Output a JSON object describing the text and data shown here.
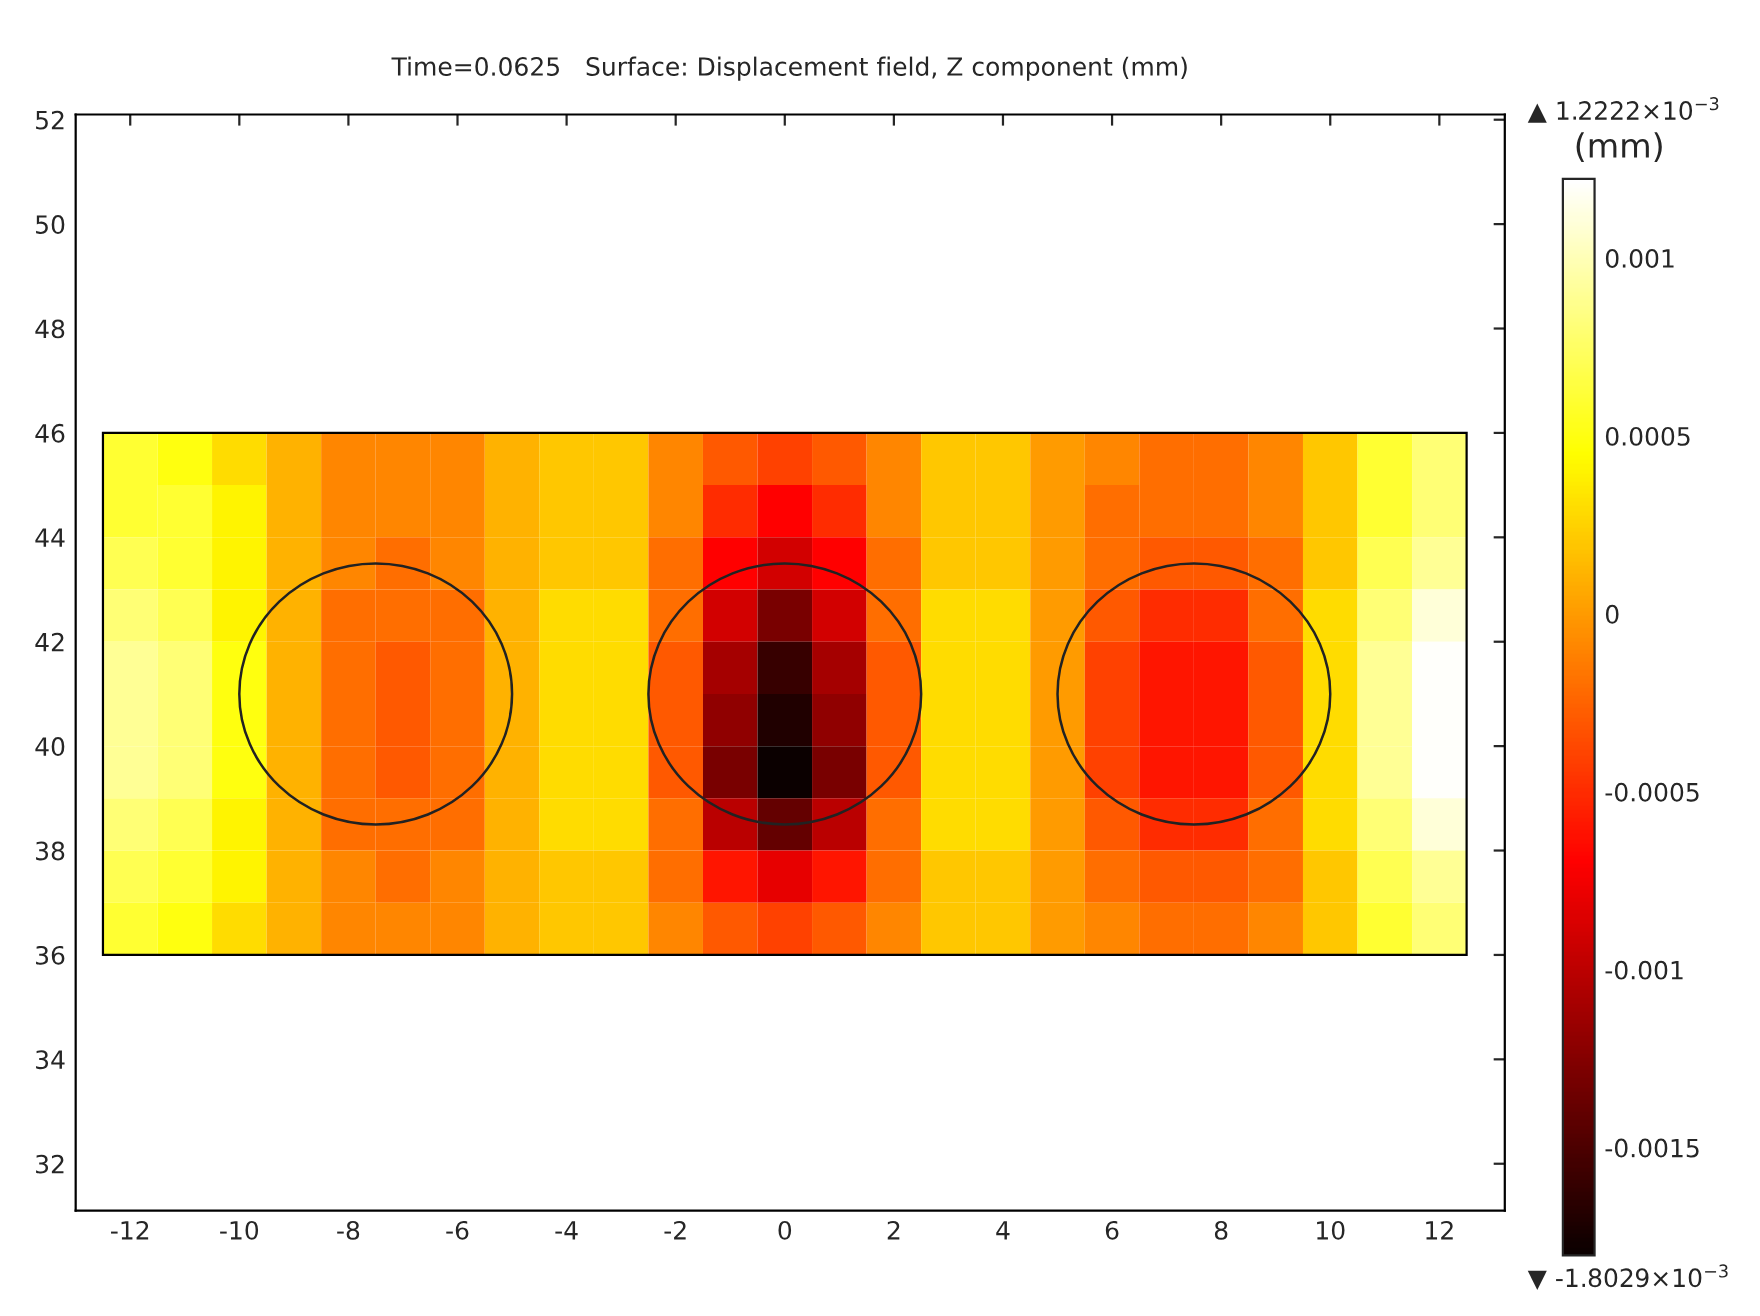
{
  "chart_data": {
    "type": "heatmap",
    "title": "Time=0.0625   Surface: Displacement field, Z component (mm)",
    "clabel": "(mm)",
    "x": [
      -12,
      -11,
      -10,
      -9,
      -8,
      -7,
      -6,
      -5,
      -4,
      -3,
      -2,
      -1,
      0,
      1,
      2,
      3,
      4,
      5,
      6,
      7,
      8,
      9,
      10,
      11,
      12
    ],
    "y": [
      45.5,
      44.5,
      43.5,
      42.5,
      41.5,
      40.5,
      39.5,
      38.5,
      37.5,
      36.5
    ],
    "cells": [
      [
        0.0006,
        0.0005,
        0.0003,
        0.0001,
        -0.0001,
        -0.0001,
        -0.0001,
        0.0001,
        0.0002,
        0.0002,
        -0.0001,
        -0.0003,
        -0.0004,
        -0.0003,
        -0.0001,
        0.0002,
        0.0002,
        0,
        -0.0001,
        -0.0002,
        -0.0002,
        -0.0001,
        0.0002,
        0.0006,
        0.0008
      ],
      [
        0.0006,
        0.0006,
        0.0004,
        0.0001,
        -0.0001,
        -0.0001,
        -0.0001,
        0.0001,
        0.0002,
        0.0002,
        -0.0001,
        -0.0005,
        -0.0007,
        -0.0005,
        -0.0001,
        0.0002,
        0.0002,
        0,
        -0.0002,
        -0.0002,
        -0.0002,
        -0.0001,
        0.0002,
        0.0006,
        0.0008
      ],
      [
        0.0007,
        0.0006,
        0.0004,
        0.0001,
        -0.0001,
        -0.0002,
        -0.0001,
        0.0001,
        0.0002,
        0.0002,
        -0.0002,
        -0.0007,
        -0.0009,
        -0.0007,
        -0.0002,
        0.0002,
        0.0002,
        0,
        -0.0002,
        -0.0003,
        -0.0003,
        -0.0002,
        0.0002,
        0.0007,
        0.0009
      ],
      [
        0.0008,
        0.0007,
        0.0004,
        0.0001,
        -0.0002,
        -0.0002,
        -0.0002,
        0.0001,
        0.0003,
        0.0003,
        -0.0002,
        -0.0009,
        -0.0013,
        -0.0009,
        -0.0002,
        0.0003,
        0.0003,
        0,
        -0.0003,
        -0.0005,
        -0.0005,
        -0.0002,
        0.0003,
        0.0008,
        0.0011
      ],
      [
        0.0009,
        0.0008,
        0.0005,
        0.0001,
        -0.0002,
        -0.0003,
        -0.0002,
        0.0001,
        0.0003,
        0.0003,
        -0.0003,
        -0.0011,
        -0.0016,
        -0.0011,
        -0.0003,
        0.0003,
        0.0003,
        0,
        -0.0004,
        -0.0006,
        -0.0006,
        -0.0003,
        0.0003,
        0.0009,
        0.0012
      ],
      [
        0.0009,
        0.0008,
        0.0005,
        0.0001,
        -0.0002,
        -0.0003,
        -0.0002,
        0.0001,
        0.0003,
        0.0003,
        -0.0003,
        -0.0012,
        -0.0017,
        -0.0012,
        -0.0003,
        0.0003,
        0.0003,
        0,
        -0.0004,
        -0.0006,
        -0.0006,
        -0.0003,
        0.0003,
        0.0009,
        0.0012
      ],
      [
        0.0009,
        0.0008,
        0.0005,
        0.0001,
        -0.0002,
        -0.0003,
        -0.0002,
        0.0001,
        0.0003,
        0.0003,
        -0.0003,
        -0.0013,
        -0.0018,
        -0.0013,
        -0.0003,
        0.0003,
        0.0003,
        0,
        -0.0004,
        -0.0006,
        -0.0006,
        -0.0003,
        0.0003,
        0.0009,
        0.0012
      ],
      [
        0.0008,
        0.0007,
        0.0004,
        0.0001,
        -0.0002,
        -0.0002,
        -0.0002,
        0.0001,
        0.0003,
        0.0003,
        -0.0002,
        -0.001,
        -0.0014,
        -0.001,
        -0.0002,
        0.0003,
        0.0003,
        0,
        -0.0003,
        -0.0005,
        -0.0005,
        -0.0002,
        0.0003,
        0.0008,
        0.0011
      ],
      [
        0.0007,
        0.0006,
        0.0004,
        0.0001,
        -0.0001,
        -0.0002,
        -0.0001,
        0.0001,
        0.0002,
        0.0002,
        -0.0002,
        -0.0006,
        -0.0008,
        -0.0006,
        -0.0002,
        0.0002,
        0.0002,
        0,
        -0.0002,
        -0.0003,
        -0.0003,
        -0.0002,
        0.0002,
        0.0007,
        0.0009
      ],
      [
        0.0006,
        0.0005,
        0.0003,
        0.0001,
        -0.0001,
        -0.0001,
        -0.0001,
        0.0001,
        0.0002,
        0.0002,
        -0.0001,
        -0.0003,
        -0.0004,
        -0.0003,
        -0.0001,
        0.0002,
        0.0002,
        0,
        -0.0001,
        -0.0002,
        -0.0002,
        -0.0001,
        0.0002,
        0.0006,
        0.0008
      ]
    ],
    "clim": [
      -0.0018029,
      0.0012222
    ],
    "cticks": [
      {
        "value": -0.0015,
        "label": "-0.0015"
      },
      {
        "value": -0.001,
        "label": "-0.001"
      },
      {
        "value": -0.0005,
        "label": "-0.0005"
      },
      0,
      {
        "value": 0.0005,
        "label": "0.0005"
      },
      {
        "value": 0.001,
        "label": "0.001"
      }
    ],
    "annotations": [
      "▲ 1.2222×10$^{−3}$",
      "▼ -1.8029×10$^{−3}$"
    ],
    "xlim": [
      -13,
      13.2
    ],
    "ylim": [
      31.1,
      52.1
    ],
    "xticks": [
      -12,
      -10,
      -8,
      -6,
      -4,
      -2,
      0,
      2,
      4,
      6,
      8,
      10,
      12
    ],
    "yticks": [
      32,
      34,
      36,
      38,
      40,
      42,
      44,
      46,
      48,
      50,
      52
    ],
    "grid": false
  }
}
